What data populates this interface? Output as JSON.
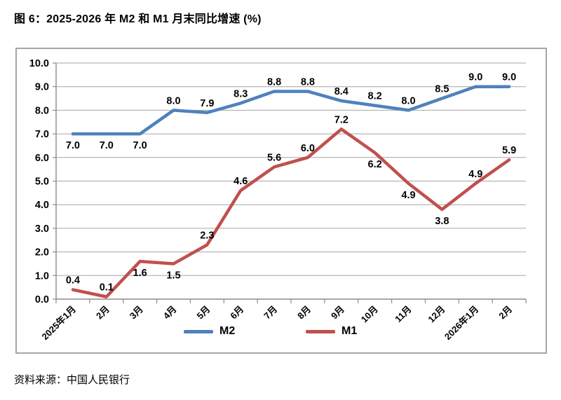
{
  "title": "图 6：2025-2026 年 M2 和 M1 月末同比增速 (%)",
  "source": "资料来源：中国人民银行",
  "chart_data": {
    "type": "line",
    "title": "图 6：2025-2026 年 M2 和 M1 月末同比增速 (%)",
    "categories": [
      "2025年1月",
      "2月",
      "3月",
      "4月",
      "5月",
      "6月",
      "7月",
      "8月",
      "9月",
      "10月",
      "11月",
      "12月",
      "2026年1月",
      "2月"
    ],
    "series": [
      {
        "name": "M2",
        "color": "#4F81BD",
        "values": [
          7.0,
          7.0,
          7.0,
          8.0,
          7.9,
          8.3,
          8.8,
          8.8,
          8.4,
          8.2,
          8.0,
          8.5,
          9.0,
          9.0
        ],
        "label_positions": [
          "below",
          "below",
          "below",
          "above",
          "above",
          "above",
          "above",
          "above",
          "above",
          "above",
          "above",
          "above",
          "above",
          "above"
        ]
      },
      {
        "name": "M1",
        "color": "#C0504D",
        "values": [
          0.4,
          0.1,
          1.6,
          1.5,
          2.3,
          4.6,
          5.6,
          6.0,
          7.2,
          6.2,
          4.9,
          3.8,
          4.9,
          5.9
        ],
        "label_positions": [
          "above",
          "above",
          "below",
          "below",
          "above",
          "above",
          "above",
          "above",
          "above",
          "below",
          "below",
          "below",
          "above",
          "above"
        ]
      }
    ],
    "ylim": [
      0,
      10
    ],
    "ytick_step": 1.0,
    "ytick_labels": [
      "0.0",
      "1.0",
      "2.0",
      "3.0",
      "4.0",
      "5.0",
      "6.0",
      "7.0",
      "8.0",
      "9.0",
      "10.0"
    ],
    "grid": true,
    "legend_position": "bottom",
    "colors": {
      "gridline": "#a6a6a6",
      "axis": "#8c8c8c",
      "label_text": "#000000",
      "border": "#a6a6a6"
    }
  }
}
